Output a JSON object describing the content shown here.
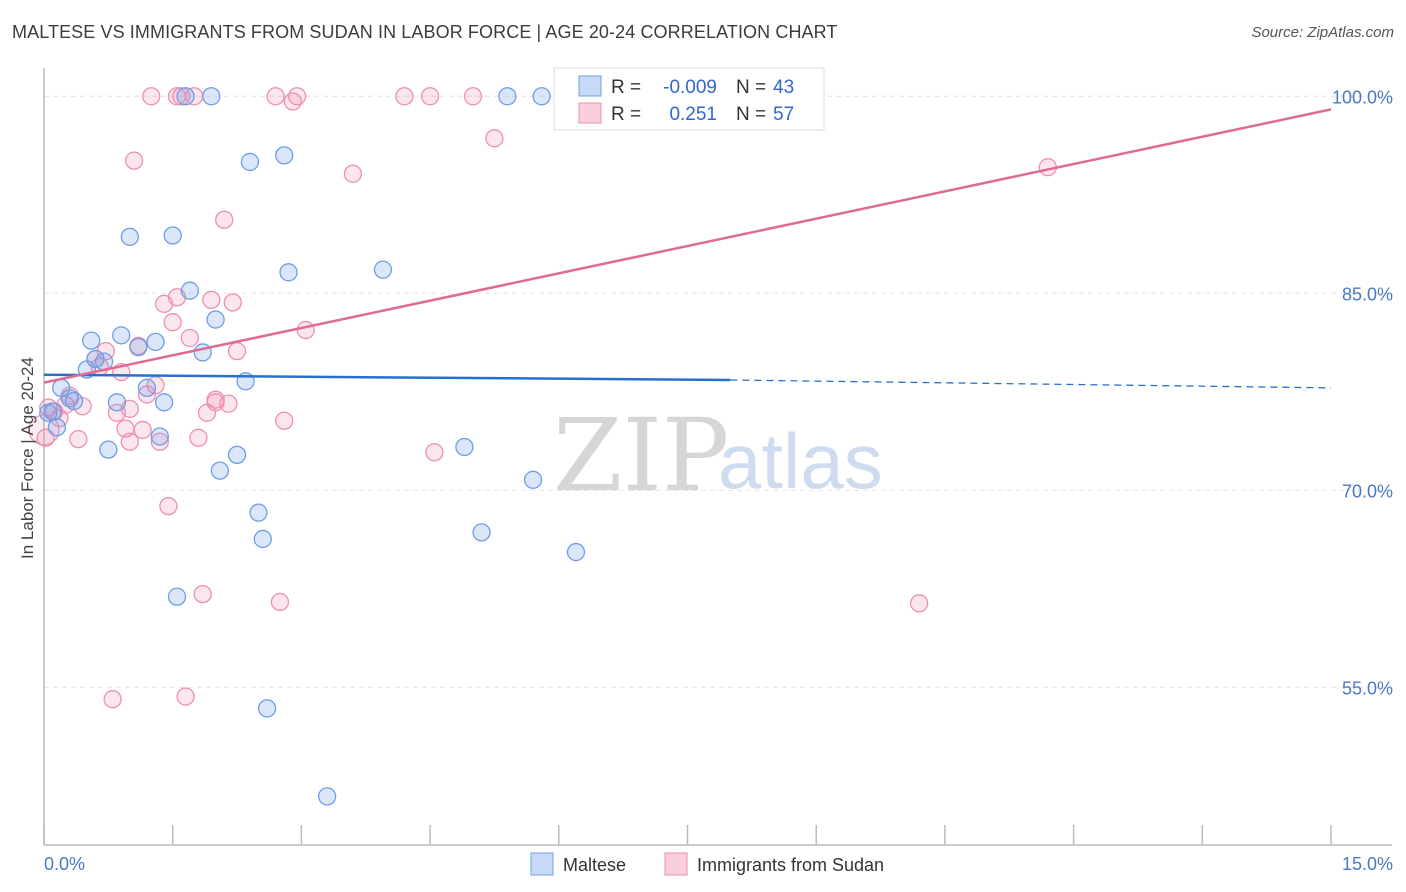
{
  "title": "MALTESE VS IMMIGRANTS FROM SUDAN IN LABOR FORCE | AGE 20-24 CORRELATION CHART",
  "source": "Source: ZipAtlas.com",
  "watermark": {
    "zip": "ZIP",
    "atlas": "atlas"
  },
  "legend": {
    "r_label": "R =",
    "n_label": "N =",
    "rows": [
      {
        "r": "-0.009",
        "n": "43"
      },
      {
        "r": "0.251",
        "n": "57"
      }
    ]
  },
  "bottom_legend": [
    "Maltese",
    "Immigrants from Sudan"
  ],
  "chart_data": {
    "type": "scatter",
    "title": "MALTESE VS IMMIGRANTS FROM SUDAN IN LABOR FORCE | AGE 20-24 CORRELATION CHART",
    "xlabel": "",
    "ylabel": "In Labor Force | Age 20-24",
    "xlim": [
      0,
      15
    ],
    "ylim": [
      43,
      102
    ],
    "x_tick_labels": [
      {
        "value": 0,
        "label": "0.0%"
      },
      {
        "value": 15,
        "label": "15.0%"
      }
    ],
    "y_tick_labels": [
      {
        "value": 55,
        "label": "55.0%"
      },
      {
        "value": 70,
        "label": "70.0%"
      },
      {
        "value": 85,
        "label": "85.0%"
      },
      {
        "value": 100,
        "label": "100.0%"
      }
    ],
    "grid": true,
    "legend_position": "top-center",
    "colors": {
      "maltese": "#6e9ee6",
      "sudan": "#ee8fb0",
      "maltese_line": "#2a6fd0",
      "sudan_line": "#e06a96"
    },
    "series": [
      {
        "name": "Maltese",
        "r": -0.009,
        "n": 43,
        "trend": {
          "x0": 0.0,
          "y0": 78.8,
          "x1": 8.0,
          "y1": 78.4,
          "dash_to_x": 15.0,
          "dash_to_y": 77.8
        },
        "points": [
          [
            0.05,
            75.9
          ],
          [
            0.1,
            76.0
          ],
          [
            0.15,
            74.8
          ],
          [
            0.2,
            77.8
          ],
          [
            0.3,
            77.0
          ],
          [
            0.35,
            76.8
          ],
          [
            0.5,
            79.2
          ],
          [
            0.55,
            81.4
          ],
          [
            0.6,
            80.0
          ],
          [
            0.7,
            79.8
          ],
          [
            0.75,
            73.1
          ],
          [
            0.85,
            76.7
          ],
          [
            0.9,
            81.8
          ],
          [
            1.0,
            89.3
          ],
          [
            1.1,
            80.9
          ],
          [
            1.2,
            77.8
          ],
          [
            1.3,
            81.3
          ],
          [
            1.35,
            74.1
          ],
          [
            1.4,
            76.7
          ],
          [
            1.5,
            89.4
          ],
          [
            1.55,
            61.9
          ],
          [
            1.65,
            100.0
          ],
          [
            1.7,
            85.2
          ],
          [
            1.85,
            80.5
          ],
          [
            1.95,
            100.0
          ],
          [
            2.0,
            83.0
          ],
          [
            2.05,
            71.5
          ],
          [
            2.25,
            72.7
          ],
          [
            2.4,
            95.0
          ],
          [
            2.5,
            68.3
          ],
          [
            2.55,
            66.3
          ],
          [
            2.6,
            53.4
          ],
          [
            2.8,
            95.5
          ],
          [
            2.85,
            86.6
          ],
          [
            2.35,
            78.3
          ],
          [
            3.3,
            46.7
          ],
          [
            3.95,
            86.8
          ],
          [
            4.9,
            73.3
          ],
          [
            5.1,
            66.8
          ],
          [
            5.4,
            100.0
          ],
          [
            5.7,
            70.8
          ],
          [
            5.8,
            100.0
          ],
          [
            6.2,
            65.3
          ]
        ]
      },
      {
        "name": "Immigrants from Sudan",
        "r": 0.251,
        "n": 57,
        "trend": {
          "x0": 0.0,
          "y0": 78.2,
          "x1": 15.0,
          "y1": 99.0
        },
        "points": [
          [
            0.02,
            74.0
          ],
          [
            0.05,
            76.3
          ],
          [
            0.12,
            76.0
          ],
          [
            0.18,
            75.5
          ],
          [
            0.25,
            76.5
          ],
          [
            0.4,
            73.9
          ],
          [
            0.6,
            80.0
          ],
          [
            0.65,
            79.4
          ],
          [
            0.72,
            80.6
          ],
          [
            0.8,
            54.1
          ],
          [
            0.85,
            75.9
          ],
          [
            0.9,
            79.0
          ],
          [
            0.95,
            74.7
          ],
          [
            1.0,
            73.7
          ],
          [
            1.05,
            95.1
          ],
          [
            1.1,
            81.0
          ],
          [
            1.15,
            74.6
          ],
          [
            1.2,
            77.3
          ],
          [
            1.25,
            100.0
          ],
          [
            1.3,
            78.0
          ],
          [
            1.35,
            73.7
          ],
          [
            1.4,
            84.2
          ],
          [
            1.45,
            68.8
          ],
          [
            1.5,
            82.8
          ],
          [
            1.55,
            84.7
          ],
          [
            1.6,
            100.0
          ],
          [
            1.65,
            54.3
          ],
          [
            1.7,
            81.6
          ],
          [
            1.75,
            100.0
          ],
          [
            1.8,
            74.0
          ],
          [
            1.85,
            62.1
          ],
          [
            1.9,
            75.9
          ],
          [
            1.95,
            84.5
          ],
          [
            2.0,
            76.7
          ],
          [
            2.1,
            90.6
          ],
          [
            2.15,
            76.6
          ],
          [
            2.2,
            84.3
          ],
          [
            2.25,
            80.6
          ],
          [
            2.7,
            100.0
          ],
          [
            2.75,
            61.5
          ],
          [
            2.8,
            75.3
          ],
          [
            2.9,
            99.6
          ],
          [
            2.95,
            100.0
          ],
          [
            3.05,
            82.2
          ],
          [
            3.6,
            94.1
          ],
          [
            4.2,
            100.0
          ],
          [
            4.5,
            100.0
          ],
          [
            4.55,
            72.9
          ],
          [
            5.0,
            100.0
          ],
          [
            5.25,
            96.8
          ],
          [
            10.2,
            61.4
          ],
          [
            11.7,
            94.6
          ],
          [
            0.3,
            77.2
          ],
          [
            0.45,
            76.4
          ],
          [
            1.0,
            76.2
          ],
          [
            2.0,
            76.9
          ],
          [
            1.55,
            100.0
          ]
        ]
      }
    ]
  }
}
